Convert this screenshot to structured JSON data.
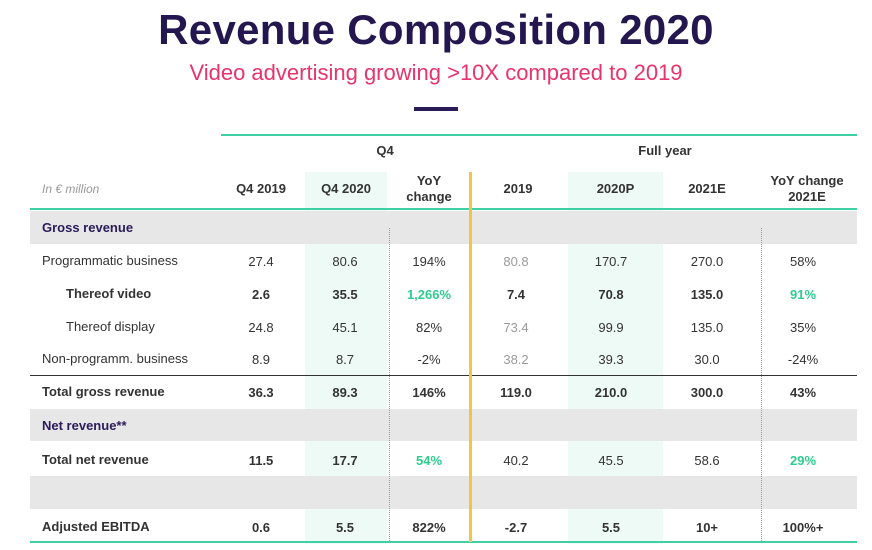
{
  "title": "Revenue Composition 2020",
  "subtitle": "Video advertising growing >10X compared to 2019",
  "unit_label": "In € million",
  "groups": {
    "q4": "Q4",
    "full_year": "Full year"
  },
  "columns": {
    "q4_2019": "Q4 2019",
    "q4_2020": "Q4 2020",
    "yoy_change_line1": "YoY",
    "yoy_change_line2": "change",
    "fy_2019": "2019",
    "fy_2020p": "2020P",
    "fy_2021e": "2021E",
    "yoy_2021e_line1": "YoY change",
    "yoy_2021e_line2": "2021E"
  },
  "sections": {
    "gross": "Gross revenue",
    "net": "Net revenue**"
  },
  "rows": {
    "programmatic": {
      "label": "Programmatic business",
      "v": [
        "27.4",
        "80.6",
        "194%",
        "80.8",
        "170.7",
        "270.0",
        "58%"
      ]
    },
    "video": {
      "label": "Thereof video",
      "v": [
        "2.6",
        "35.5",
        "1,266%",
        "7.4",
        "70.8",
        "135.0",
        "91%"
      ]
    },
    "display": {
      "label": "Thereof display",
      "v": [
        "24.8",
        "45.1",
        "82%",
        "73.4",
        "99.9",
        "135.0",
        "35%"
      ]
    },
    "nonprog": {
      "label": "Non-programm. business",
      "v": [
        "8.9",
        "8.7",
        "-2%",
        "38.2",
        "39.3",
        "30.0",
        "-24%"
      ]
    },
    "total_gross": {
      "label": "Total gross revenue",
      "v": [
        "36.3",
        "89.3",
        "146%",
        "119.0",
        "210.0",
        "300.0",
        "43%"
      ]
    },
    "total_net": {
      "label": "Total net revenue",
      "v": [
        "11.5",
        "17.7",
        "54%",
        "40.2",
        "45.5",
        "58.6",
        "29%"
      ]
    },
    "ebitda": {
      "label": "Adjusted EBITDA",
      "v": [
        "0.6",
        "5.5",
        "822%",
        "-2.7",
        "5.5",
        "10+",
        "100%+"
      ]
    }
  },
  "colors": {
    "title": "#24174f",
    "subtitle": "#e8336d",
    "accent_line": "#3fd1a5",
    "highlight": "#2ecc8f",
    "divider": "#f2c44b"
  }
}
